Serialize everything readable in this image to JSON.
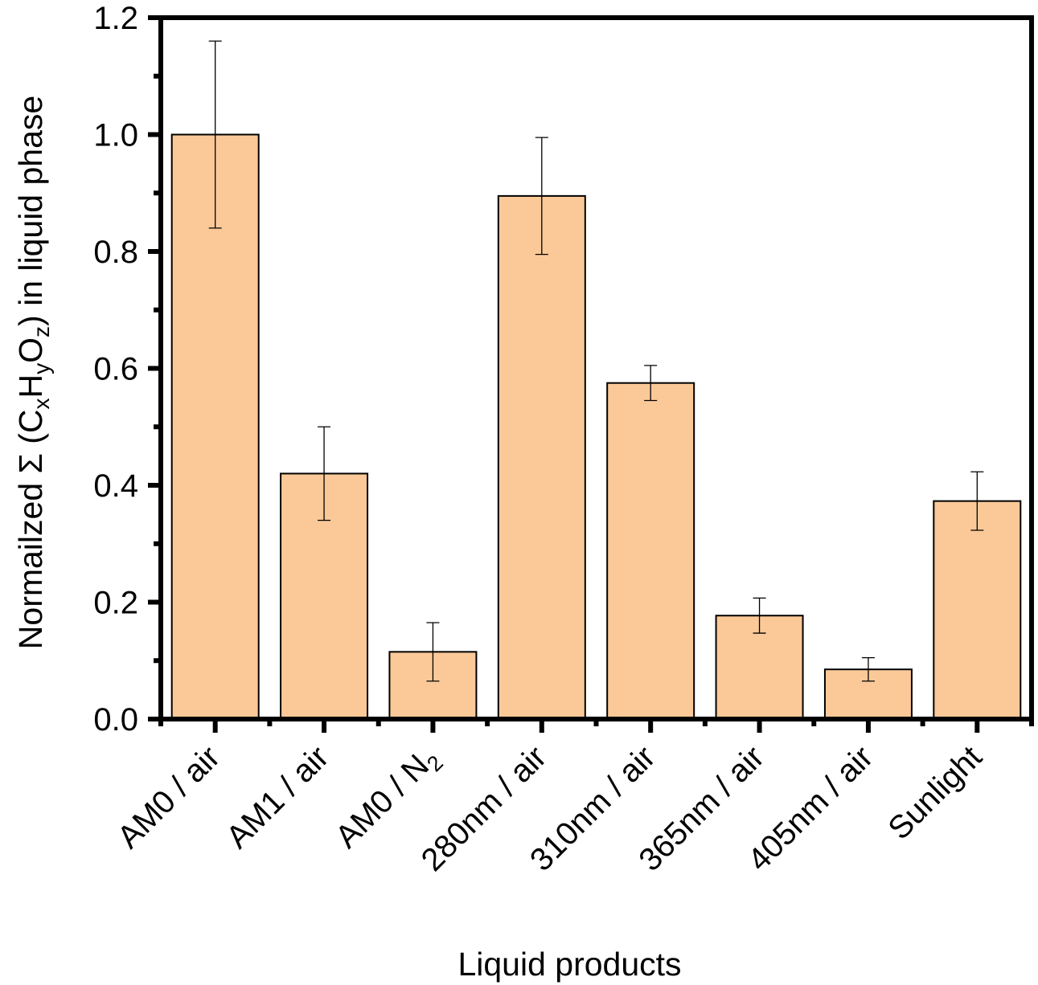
{
  "chart_data": {
    "type": "bar",
    "categories": [
      "AM0 / air",
      "AM1 / air",
      "AM0 / N2",
      "280nm / air",
      "310nm / air",
      "365nm / air",
      "405nm / air",
      "Sunlight"
    ],
    "category_labels": [
      {
        "main": "AM0 / air",
        "sub": ""
      },
      {
        "main": "AM1 / air",
        "sub": ""
      },
      {
        "main": "AM0 / N",
        "sub": "2"
      },
      {
        "main": "280nm / air",
        "sub": ""
      },
      {
        "main": "310nm / air",
        "sub": ""
      },
      {
        "main": "365nm / air",
        "sub": ""
      },
      {
        "main": "405nm / air",
        "sub": ""
      },
      {
        "main": "Sunlight",
        "sub": ""
      }
    ],
    "values": [
      1.0,
      0.42,
      0.115,
      0.895,
      0.575,
      0.177,
      0.085,
      0.373
    ],
    "errors": [
      0.16,
      0.08,
      0.05,
      0.1,
      0.03,
      0.03,
      0.02,
      0.05
    ],
    "xlabel": "Liquid products",
    "ylabel_parts": [
      {
        "text": "Normailzed Σ (C",
        "sub": false
      },
      {
        "text": "x",
        "sub": true
      },
      {
        "text": "H",
        "sub": false
      },
      {
        "text": "y",
        "sub": true
      },
      {
        "text": "O",
        "sub": false
      },
      {
        "text": "z",
        "sub": true
      },
      {
        "text": ") in liquid phase",
        "sub": false
      }
    ],
    "ylim": [
      0,
      1.2
    ],
    "yticks": [
      "0.0",
      "0.2",
      "0.4",
      "0.6",
      "0.8",
      "1.0",
      "1.2"
    ],
    "grid": false,
    "bar_color": "#FBC998",
    "edge_color": "#000000"
  }
}
